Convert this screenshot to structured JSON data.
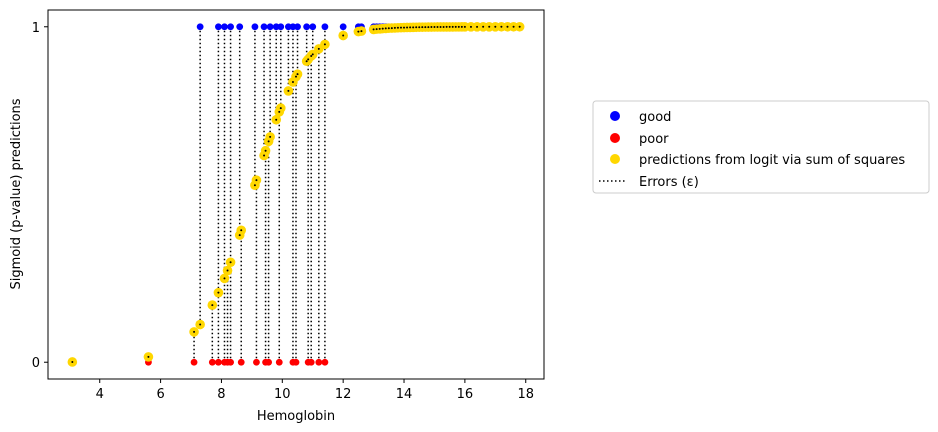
{
  "chart_data": {
    "type": "scatter",
    "title": "",
    "xlabel": "Hemoglobin",
    "ylabel": "Sigmoid (p-value) predictions",
    "xlim": [
      2.3,
      18.6
    ],
    "ylim": [
      -0.05,
      1.05
    ],
    "x_ticks": [
      "4",
      "6",
      "8",
      "10",
      "12",
      "14",
      "16",
      "18"
    ],
    "y_ticks": [
      "0",
      "1"
    ],
    "grid": false,
    "legend_position": "right",
    "logit_params": {
      "b0": -10.9,
      "b1": 1.21
    },
    "series": [
      {
        "name": "good",
        "color": "#0000ff",
        "y": 1,
        "x": [
          7.3,
          7.9,
          8.1,
          8.3,
          8.6,
          9.1,
          9.4,
          9.6,
          9.8,
          9.95,
          10.2,
          10.35,
          10.5,
          10.8,
          11.0,
          11.4,
          12.0,
          12.5,
          12.6,
          13.0,
          13.1,
          13.2,
          13.3,
          13.4,
          13.5,
          13.6,
          13.7,
          13.8,
          13.9,
          14.0,
          14.1,
          14.2,
          14.3,
          14.4,
          14.5,
          14.6,
          14.7,
          14.8,
          14.9,
          15.0,
          15.1,
          15.2,
          15.3,
          15.4,
          15.5,
          15.6,
          15.7,
          15.8,
          15.9,
          16.0,
          16.1,
          16.2,
          16.3,
          16.4,
          16.5,
          16.6,
          16.7
        ]
      },
      {
        "name": "poor",
        "color": "#ff0000",
        "y": 0,
        "x": [
          3.1,
          5.6,
          7.1,
          7.7,
          7.9,
          8.1,
          8.2,
          8.3,
          8.65,
          9.15,
          9.45,
          9.55,
          9.9,
          10.35,
          10.45,
          10.85,
          10.95,
          11.2,
          11.4
        ]
      },
      {
        "name": "predictions from logit via sum of squares",
        "color": "#ffd700",
        "x": [
          3.1,
          5.6,
          7.1,
          7.3,
          7.7,
          7.9,
          8.1,
          8.2,
          8.3,
          8.6,
          8.65,
          9.1,
          9.15,
          9.4,
          9.45,
          9.55,
          9.6,
          9.8,
          9.9,
          9.95,
          10.2,
          10.35,
          10.45,
          10.5,
          10.8,
          10.85,
          10.95,
          11.0,
          11.2,
          11.4,
          12.0,
          12.5,
          12.6,
          13.0,
          13.1,
          13.2,
          13.3,
          13.4,
          13.5,
          13.6,
          13.7,
          13.8,
          13.9,
          14.0,
          14.1,
          14.2,
          14.3,
          14.4,
          14.5,
          14.6,
          14.7,
          14.8,
          14.9,
          15.0,
          15.1,
          15.2,
          15.3,
          15.4,
          15.5,
          15.6,
          15.7,
          15.8,
          15.9,
          16.0,
          16.2,
          16.4,
          16.6,
          16.8,
          17.0,
          17.2,
          17.4,
          17.6,
          17.8
        ]
      },
      {
        "name": "Errors (ε)",
        "style": "dotted",
        "color": "#000000"
      }
    ]
  }
}
